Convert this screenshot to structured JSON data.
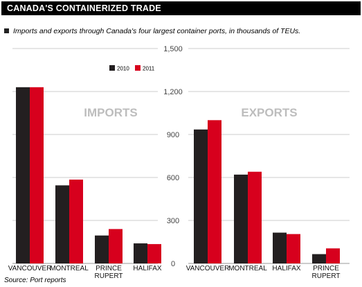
{
  "header": {
    "title": "CANADA'S CONTAINERIZED TRADE",
    "subtitle": "Imports and exports through Canada's four largest container ports, in thousands of TEUs."
  },
  "footer": {
    "source": "Source: Port reports"
  },
  "colors": {
    "series_2010": "#231f20",
    "series_2011": "#d7001d",
    "grid": "#bbbbbb",
    "title_bar": "#000000"
  },
  "chart_data": [
    {
      "type": "bar",
      "title": "IMPORTS",
      "categories": [
        "VANCOUVER",
        "MONTREAL",
        "PRINCE RUPERT",
        "HALIFAX"
      ],
      "category_lines": [
        [
          "VANCOUVER"
        ],
        [
          "MONTREAL"
        ],
        [
          "PRINCE",
          "RUPERT"
        ],
        [
          "HALIFAX"
        ]
      ],
      "series": [
        {
          "name": "2010",
          "values": [
            1230,
            545,
            195,
            140
          ]
        },
        {
          "name": "2011",
          "values": [
            1230,
            585,
            240,
            135
          ]
        }
      ],
      "ylim": [
        0,
        1500
      ],
      "yticks": [
        "0",
        "300",
        "600",
        "900",
        "1,200",
        "1,500"
      ],
      "ytick_values": [
        0,
        300,
        600,
        900,
        1200,
        1500
      ],
      "grid": true,
      "legend": "top-right"
    },
    {
      "type": "bar",
      "title": "EXPORTS",
      "categories": [
        "VANCOUVER",
        "MONTREAL",
        "HALIFAX",
        "PRINCE RUPERT"
      ],
      "category_lines": [
        [
          "VANCOUVER"
        ],
        [
          "MONTREAL"
        ],
        [
          "HALIFAX"
        ],
        [
          "PRINCE",
          "RUPERT"
        ]
      ],
      "series": [
        {
          "name": "2010",
          "values": [
            935,
            620,
            215,
            65
          ]
        },
        {
          "name": "2011",
          "values": [
            1000,
            640,
            205,
            105
          ]
        }
      ],
      "ylim": [
        0,
        1500
      ],
      "grid": true
    }
  ]
}
